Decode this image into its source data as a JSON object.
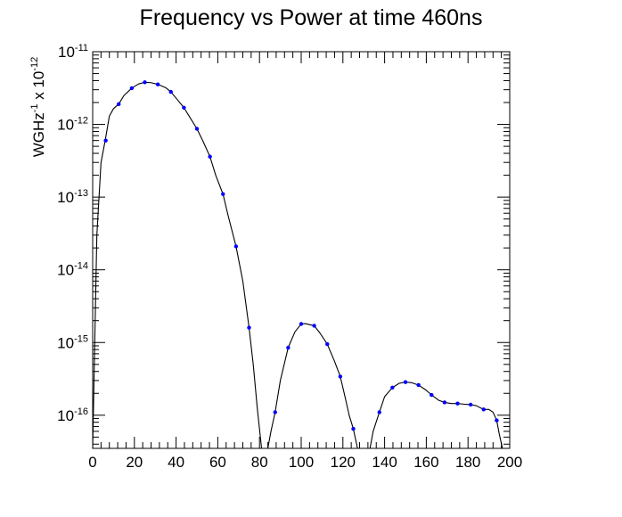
{
  "chart_data": {
    "type": "line",
    "title": "Frequency vs Power at time 460ns",
    "ylabel": {
      "base": "WGHz",
      "exp1": "-1",
      "mid": " x 10",
      "exp2": "-12"
    },
    "xlabel": "",
    "xlim": [
      0,
      200
    ],
    "ylim": [
      3.5e-17,
      1e-11
    ],
    "yscale": "log",
    "grid": false,
    "x_ticks": [
      0,
      20,
      40,
      60,
      80,
      100,
      120,
      140,
      160,
      180,
      200
    ],
    "y_ticks": [
      {
        "value": 1e-16,
        "base": "10",
        "exp": "-16"
      },
      {
        "value": 1e-15,
        "base": "10",
        "exp": "-15"
      },
      {
        "value": 1e-14,
        "base": "10",
        "exp": "-14"
      },
      {
        "value": 1e-13,
        "base": "10",
        "exp": "-13"
      },
      {
        "value": 1e-12,
        "base": "10",
        "exp": "-12"
      },
      {
        "value": 1e-11,
        "base": "10",
        "exp": "-11"
      }
    ],
    "curve_color": "#000000",
    "marker_color": "#0000ff",
    "series": [
      {
        "curve": [
          [
            0,
            3.5e-17
          ],
          [
            2,
            3e-14
          ],
          [
            4,
            3e-13
          ],
          [
            6,
            6e-13
          ],
          [
            8,
            1.3e-12
          ],
          [
            10,
            1.65e-12
          ],
          [
            12.5,
            1.9e-12
          ],
          [
            15,
            2.5e-12
          ],
          [
            18.75,
            3.15e-12
          ],
          [
            22,
            3.6e-12
          ],
          [
            25,
            3.8e-12
          ],
          [
            28,
            3.75e-12
          ],
          [
            31.25,
            3.55e-12
          ],
          [
            35,
            3.2e-12
          ],
          [
            37.5,
            2.8e-12
          ],
          [
            40,
            2.3e-12
          ],
          [
            43.75,
            1.7e-12
          ],
          [
            47,
            1.2e-12
          ],
          [
            50,
            8.7e-13
          ],
          [
            53,
            5.8e-13
          ],
          [
            56.25,
            3.6e-13
          ],
          [
            59,
            2e-13
          ],
          [
            62.5,
            1.1e-13
          ],
          [
            65,
            5.5e-14
          ],
          [
            68.75,
            2.1e-14
          ],
          [
            72,
            7e-15
          ],
          [
            75,
            1.6e-15
          ],
          [
            77,
            5e-16
          ],
          [
            79,
            1.2e-16
          ],
          [
            81,
            3.5e-17
          ],
          [
            84,
            3.5e-17
          ],
          [
            85.5,
            6e-17
          ],
          [
            87.5,
            1.1e-16
          ],
          [
            90,
            3e-16
          ],
          [
            93.75,
            8.5e-16
          ],
          [
            97,
            1.4e-15
          ],
          [
            100,
            1.8e-15
          ],
          [
            102,
            1.82e-15
          ],
          [
            106.25,
            1.7e-15
          ],
          [
            109,
            1.35e-15
          ],
          [
            112.5,
            9.5e-16
          ],
          [
            116,
            5.5e-16
          ],
          [
            118.75,
            3.4e-16
          ],
          [
            121,
            1.8e-16
          ],
          [
            123,
            1e-16
          ],
          [
            125,
            6.5e-17
          ],
          [
            127,
            3.5e-17
          ],
          [
            133,
            3.5e-17
          ],
          [
            134.5,
            6e-17
          ],
          [
            137.5,
            1.1e-16
          ],
          [
            140,
            1.8e-16
          ],
          [
            143.75,
            2.4e-16
          ],
          [
            147,
            2.75e-16
          ],
          [
            150,
            2.85e-16
          ],
          [
            153,
            2.8e-16
          ],
          [
            156.25,
            2.6e-16
          ],
          [
            160,
            2.2e-16
          ],
          [
            162.5,
            1.9e-16
          ],
          [
            166,
            1.6e-16
          ],
          [
            168.75,
            1.5e-16
          ],
          [
            172,
            1.45e-16
          ],
          [
            175,
            1.45e-16
          ],
          [
            178,
            1.42e-16
          ],
          [
            181.25,
            1.4e-16
          ],
          [
            184,
            1.35e-16
          ],
          [
            187.5,
            1.2e-16
          ],
          [
            190,
            1.2e-16
          ],
          [
            192,
            1.1e-16
          ],
          [
            193.75,
            8.5e-17
          ],
          [
            195,
            5.5e-17
          ],
          [
            196.5,
            3.5e-17
          ]
        ],
        "points": [
          [
            6.25,
            6e-13
          ],
          [
            12.5,
            1.9e-12
          ],
          [
            18.75,
            3.15e-12
          ],
          [
            25,
            3.8e-12
          ],
          [
            31.25,
            3.55e-12
          ],
          [
            37.5,
            2.8e-12
          ],
          [
            43.75,
            1.7e-12
          ],
          [
            50,
            8.7e-13
          ],
          [
            56.25,
            3.6e-13
          ],
          [
            62.5,
            1.1e-13
          ],
          [
            68.75,
            2.1e-14
          ],
          [
            75,
            1.6e-15
          ],
          [
            87.5,
            1.1e-16
          ],
          [
            93.75,
            8.5e-16
          ],
          [
            100,
            1.8e-15
          ],
          [
            106.25,
            1.7e-15
          ],
          [
            112.5,
            9.5e-16
          ],
          [
            118.75,
            3.4e-16
          ],
          [
            125,
            6.5e-17
          ],
          [
            137.5,
            1.1e-16
          ],
          [
            143.75,
            2.4e-16
          ],
          [
            150,
            2.85e-16
          ],
          [
            156.25,
            2.6e-16
          ],
          [
            162.5,
            1.9e-16
          ],
          [
            168.75,
            1.5e-16
          ],
          [
            175,
            1.45e-16
          ],
          [
            181.25,
            1.4e-16
          ],
          [
            187.5,
            1.2e-16
          ],
          [
            193.75,
            8.5e-17
          ]
        ]
      }
    ]
  }
}
